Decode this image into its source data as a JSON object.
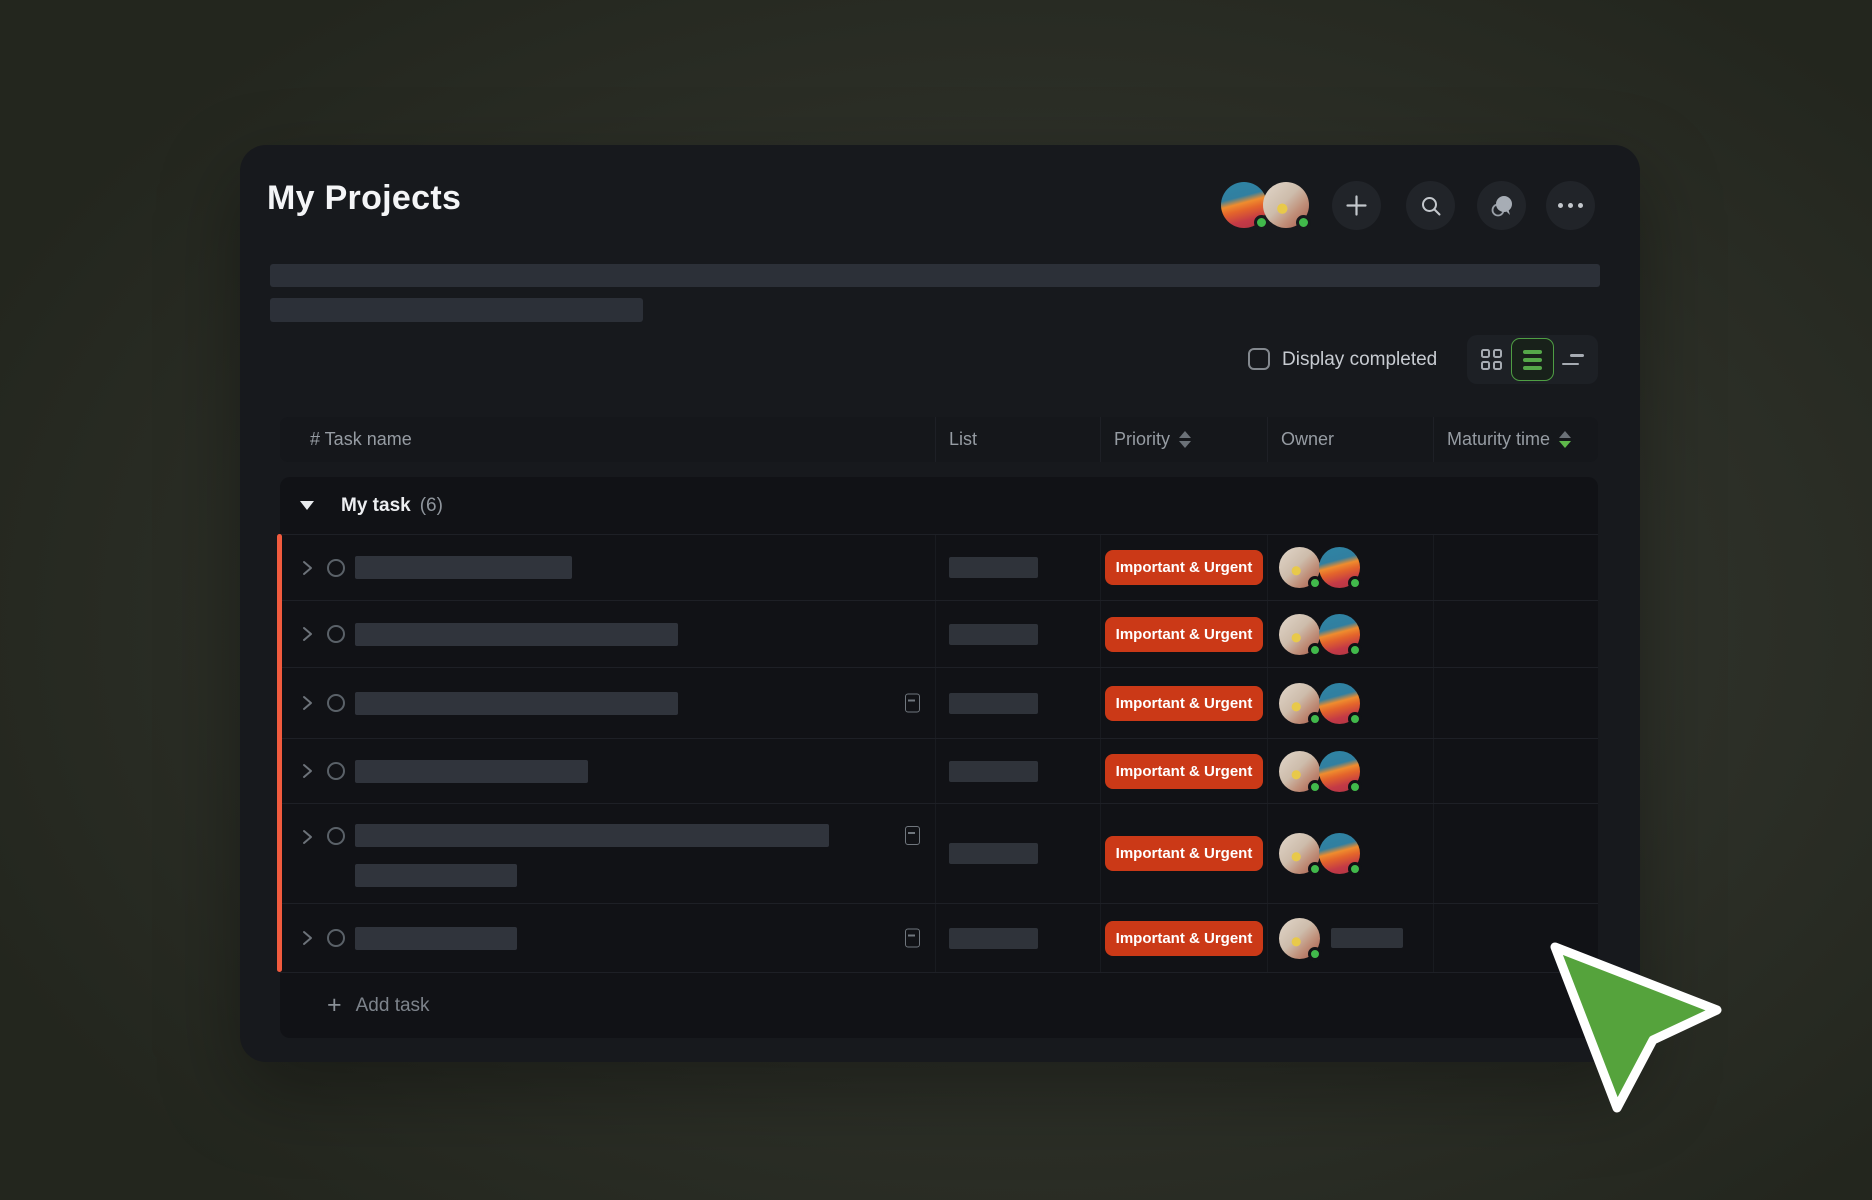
{
  "page": {
    "title": "My Projects"
  },
  "header_actions": {
    "avatars": [
      {
        "id": "user-anime",
        "online": true
      },
      {
        "id": "user-baby",
        "online": true
      }
    ],
    "buttons": [
      {
        "icon": "plus-icon"
      },
      {
        "icon": "search-icon"
      },
      {
        "icon": "chat-icon"
      },
      {
        "icon": "more-icon"
      }
    ]
  },
  "toolbar": {
    "display_completed_label": "Display completed",
    "display_completed_checked": false,
    "view_buttons": [
      {
        "icon": "grid-view-icon",
        "active": false
      },
      {
        "icon": "list-view-icon",
        "active": true
      },
      {
        "icon": "sort-view-icon",
        "active": false
      }
    ]
  },
  "table": {
    "columns": [
      {
        "label": "# Task name",
        "sortable": false
      },
      {
        "label": "List",
        "sortable": false
      },
      {
        "label": "Priority",
        "sortable": true,
        "sort_state": "none"
      },
      {
        "label": "Owner",
        "sortable": false
      },
      {
        "label": "Maturity time",
        "sortable": true,
        "sort_state": "desc"
      }
    ],
    "group": {
      "label": "My task",
      "count": "(6)",
      "expanded": true
    },
    "rows": [
      {
        "title_skeleton_widths": [
          217
        ],
        "has_note_icon": false,
        "list_skeleton_width": 89,
        "priority": "Important & Urgent",
        "owners": [
          "user-baby",
          "user-anime"
        ],
        "owner_skeleton_width": null,
        "maturity": ""
      },
      {
        "title_skeleton_widths": [
          323
        ],
        "has_note_icon": false,
        "list_skeleton_width": 89,
        "priority": "Important & Urgent",
        "owners": [
          "user-baby",
          "user-anime"
        ],
        "owner_skeleton_width": null,
        "maturity": ""
      },
      {
        "title_skeleton_widths": [
          323
        ],
        "has_note_icon": true,
        "list_skeleton_width": 89,
        "priority": "Important & Urgent",
        "owners": [
          "user-baby",
          "user-anime"
        ],
        "owner_skeleton_width": null,
        "maturity": ""
      },
      {
        "title_skeleton_widths": [
          233
        ],
        "has_note_icon": false,
        "list_skeleton_width": 89,
        "priority": "Important & Urgent",
        "owners": [
          "user-baby",
          "user-anime"
        ],
        "owner_skeleton_width": null,
        "maturity": ""
      },
      {
        "title_skeleton_widths": [
          474,
          162
        ],
        "has_note_icon": true,
        "list_skeleton_width": 89,
        "priority": "Important & Urgent",
        "owners": [
          "user-baby",
          "user-anime"
        ],
        "owner_skeleton_width": null,
        "maturity": ""
      },
      {
        "title_skeleton_widths": [
          162
        ],
        "has_note_icon": true,
        "list_skeleton_width": 89,
        "priority": "Important & Urgent",
        "owners": [
          "user-baby"
        ],
        "owner_skeleton_width": 72,
        "maturity": ""
      }
    ],
    "add_task_label": "Add task"
  },
  "colors": {
    "accent_orange": "#f25b3e",
    "priority_red": "#cb3917",
    "active_green": "#55a245",
    "online_green": "#41b94b"
  }
}
